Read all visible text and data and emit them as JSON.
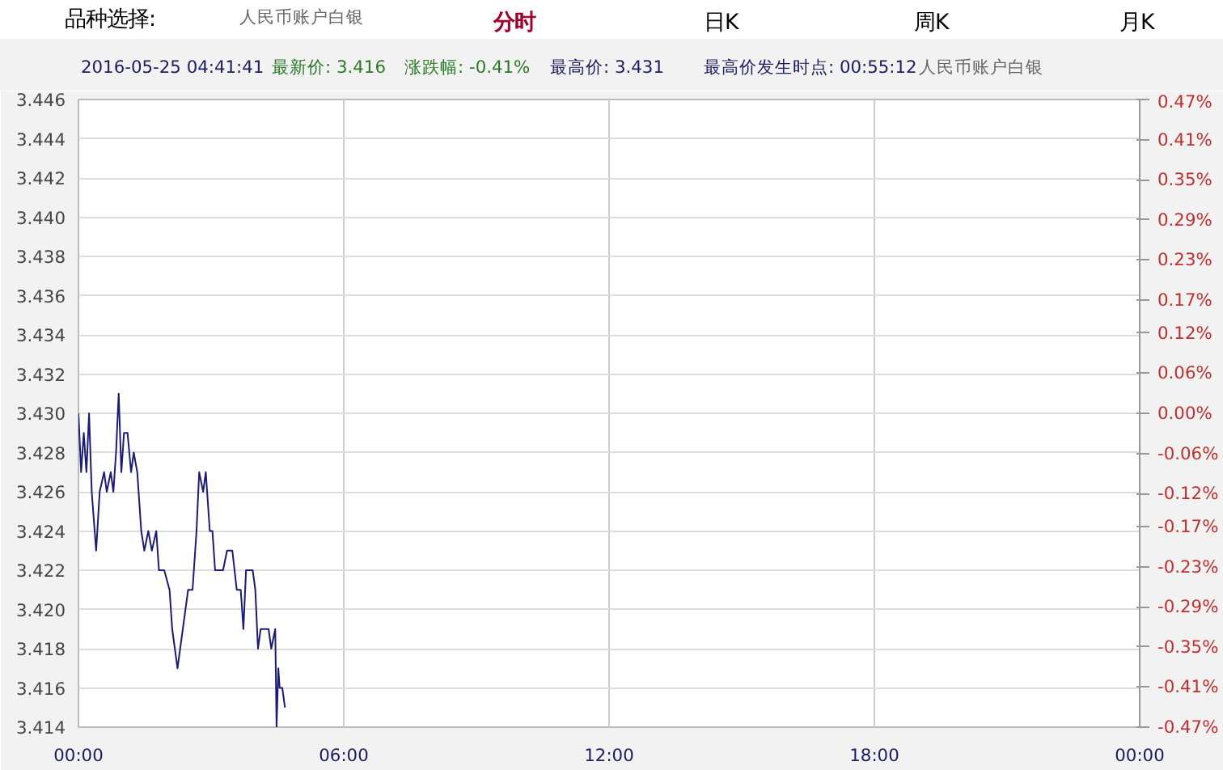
{
  "chart_data": {
    "type": "line",
    "annotations": [
      "品种选择:",
      "人民币账户白银",
      "分时",
      "日K",
      "周K",
      "月K",
      "2016-05-25 04:41:41",
      "最新价: 3.416",
      "涨跌幅: -0.41%",
      "最高价: 3.431",
      "最高价发生时点: 00:55:12",
      "人民币账户白银"
    ],
    "x": [
      0,
      0.06,
      0.12,
      0.18,
      0.24,
      0.3,
      0.4,
      0.48,
      0.58,
      0.64,
      0.73,
      0.79,
      0.85,
      0.91,
      0.97,
      1.03,
      1.11,
      1.19,
      1.25,
      1.33,
      1.42,
      1.49,
      1.58,
      1.66,
      1.76,
      1.82,
      1.94,
      2.06,
      2.12,
      2.24,
      2.36,
      2.48,
      2.58,
      2.67,
      2.73,
      2.82,
      2.88,
      2.97,
      3.03,
      3.09,
      3.27,
      3.36,
      3.48,
      3.58,
      3.67,
      3.73,
      3.79,
      3.94,
      4.0,
      4.06,
      4.12,
      4.3,
      4.36,
      4.45,
      4.48,
      4.52,
      4.55,
      4.58,
      4.61,
      4.67
    ],
    "series": [
      {
        "color": "#1c1c78",
        "values": [
          3.43,
          3.427,
          3.429,
          3.427,
          3.43,
          3.426,
          3.423,
          3.426,
          3.427,
          3.426,
          3.427,
          3.426,
          3.428,
          3.431,
          3.427,
          3.429,
          3.429,
          3.427,
          3.428,
          3.427,
          3.424,
          3.423,
          3.424,
          3.423,
          3.424,
          3.422,
          3.422,
          3.421,
          3.419,
          3.417,
          3.419,
          3.421,
          3.421,
          3.424,
          3.427,
          3.426,
          3.427,
          3.424,
          3.424,
          3.422,
          3.422,
          3.423,
          3.423,
          3.421,
          3.421,
          3.419,
          3.422,
          3.422,
          3.421,
          3.418,
          3.419,
          3.419,
          3.418,
          3.419,
          3.414,
          3.417,
          3.416,
          3.416,
          3.416,
          3.415
        ]
      }
    ],
    "xlim": [
      0,
      24
    ],
    "xticks": [
      {
        "value": 0,
        "label": "00:00"
      },
      {
        "value": 6,
        "label": "06:00"
      },
      {
        "value": 12,
        "label": "12:00"
      },
      {
        "value": 18,
        "label": "18:00"
      },
      {
        "value": 24,
        "label": "00:00"
      }
    ],
    "ylim": [
      3.414,
      3.446
    ],
    "yticks": [
      {
        "value": 3.414,
        "label": "3.414"
      },
      {
        "value": 3.416,
        "label": "3.416"
      },
      {
        "value": 3.418,
        "label": "3.418"
      },
      {
        "value": 3.42,
        "label": "3.420"
      },
      {
        "value": 3.422,
        "label": "3.422"
      },
      {
        "value": 3.424,
        "label": "3.424"
      },
      {
        "value": 3.426,
        "label": "3.426"
      },
      {
        "value": 3.428,
        "label": "3.428"
      },
      {
        "value": 3.43,
        "label": "3.430"
      },
      {
        "value": 3.432,
        "label": "3.432"
      },
      {
        "value": 3.434,
        "label": "3.434"
      },
      {
        "value": 3.436,
        "label": "3.436"
      },
      {
        "value": 3.438,
        "label": "3.438"
      },
      {
        "value": 3.44,
        "label": "3.440"
      },
      {
        "value": 3.442,
        "label": "3.442"
      },
      {
        "value": 3.444,
        "label": "3.444"
      },
      {
        "value": 3.446,
        "label": "3.446"
      }
    ],
    "y2lim": [
      -0.47,
      0.47
    ],
    "y2ticks": [
      {
        "value": -0.47,
        "label": "-0.47%"
      },
      {
        "value": -0.41,
        "label": "-0.41%"
      },
      {
        "value": -0.35,
        "label": "-0.35%"
      },
      {
        "value": -0.29,
        "label": "-0.29%"
      },
      {
        "value": -0.23,
        "label": "-0.23%"
      },
      {
        "value": -0.17,
        "label": "-0.17%"
      },
      {
        "value": -0.12,
        "label": "-0.12%"
      },
      {
        "value": -0.06,
        "label": "-0.06%"
      },
      {
        "value": 0,
        "label": "0.00%"
      },
      {
        "value": 0.06,
        "label": "0.06%"
      },
      {
        "value": 0.12,
        "label": "0.12%"
      },
      {
        "value": 0.17,
        "label": "0.17%"
      },
      {
        "value": 0.23,
        "label": "0.23%"
      },
      {
        "value": 0.29,
        "label": "0.29%"
      },
      {
        "value": 0.35,
        "label": "0.35%"
      },
      {
        "value": 0.41,
        "label": "0.41%"
      },
      {
        "value": 0.47,
        "label": "0.47%"
      }
    ],
    "grid": true,
    "marker": "none",
    "line_style": "solid"
  }
}
